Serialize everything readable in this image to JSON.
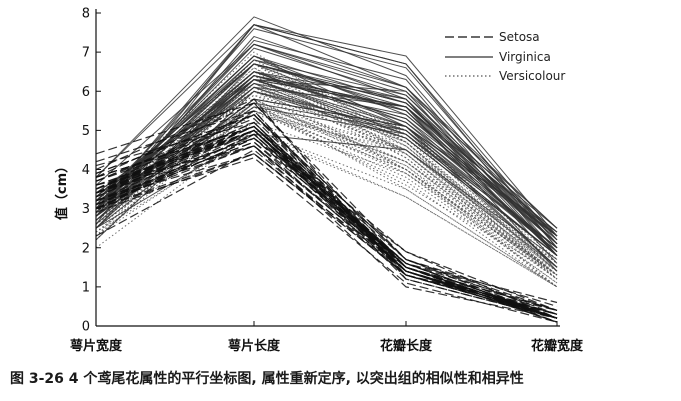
{
  "chart_data": {
    "type": "line",
    "chart_kind": "parallel-coordinates",
    "ylabel": "值（cm）",
    "ylim": [
      0,
      8
    ],
    "yticks": [
      0,
      1,
      2,
      3,
      4,
      5,
      6,
      7,
      8
    ],
    "categories": [
      "萼片宽度",
      "萼片长度",
      "花瓣长度",
      "花瓣宽度"
    ],
    "legend": {
      "placement": "top-right",
      "entries": [
        "Setosa",
        "Virginica",
        "Versicolour"
      ]
    },
    "grid": false,
    "series": [
      {
        "name": "Setosa",
        "style": "dashed",
        "color": "#111111",
        "lines": [
          [
            3.5,
            5.1,
            1.4,
            0.2
          ],
          [
            3.0,
            4.9,
            1.4,
            0.2
          ],
          [
            3.2,
            4.7,
            1.3,
            0.2
          ],
          [
            3.1,
            4.6,
            1.5,
            0.2
          ],
          [
            3.6,
            5.0,
            1.4,
            0.2
          ],
          [
            3.9,
            5.4,
            1.7,
            0.4
          ],
          [
            3.4,
            4.6,
            1.4,
            0.3
          ],
          [
            3.4,
            5.0,
            1.5,
            0.2
          ],
          [
            2.9,
            4.4,
            1.4,
            0.2
          ],
          [
            3.1,
            4.9,
            1.5,
            0.1
          ],
          [
            3.7,
            5.4,
            1.5,
            0.2
          ],
          [
            3.4,
            4.8,
            1.6,
            0.2
          ],
          [
            3.0,
            4.8,
            1.4,
            0.1
          ],
          [
            3.0,
            4.3,
            1.1,
            0.1
          ],
          [
            4.0,
            5.8,
            1.2,
            0.2
          ],
          [
            4.4,
            5.7,
            1.5,
            0.4
          ],
          [
            3.9,
            5.4,
            1.3,
            0.4
          ],
          [
            3.5,
            5.1,
            1.4,
            0.3
          ],
          [
            3.8,
            5.7,
            1.7,
            0.3
          ],
          [
            3.8,
            5.1,
            1.5,
            0.3
          ],
          [
            3.4,
            5.4,
            1.7,
            0.2
          ],
          [
            3.7,
            5.1,
            1.5,
            0.4
          ],
          [
            3.6,
            4.6,
            1.0,
            0.2
          ],
          [
            3.3,
            5.1,
            1.7,
            0.5
          ],
          [
            3.4,
            4.8,
            1.9,
            0.2
          ],
          [
            3.0,
            5.0,
            1.6,
            0.2
          ],
          [
            3.4,
            5.0,
            1.6,
            0.4
          ],
          [
            3.5,
            5.2,
            1.5,
            0.2
          ],
          [
            3.4,
            5.2,
            1.4,
            0.2
          ],
          [
            3.2,
            4.7,
            1.6,
            0.2
          ],
          [
            4.1,
            5.2,
            1.5,
            0.1
          ],
          [
            4.2,
            5.5,
            1.4,
            0.2
          ],
          [
            3.1,
            4.9,
            1.5,
            0.2
          ],
          [
            3.2,
            5.0,
            1.2,
            0.2
          ],
          [
            3.5,
            5.5,
            1.3,
            0.2
          ],
          [
            3.6,
            4.9,
            1.4,
            0.1
          ],
          [
            3.0,
            4.4,
            1.3,
            0.2
          ],
          [
            3.4,
            5.1,
            1.5,
            0.2
          ],
          [
            3.5,
            5.0,
            1.3,
            0.3
          ],
          [
            2.3,
            4.5,
            1.3,
            0.3
          ],
          [
            3.2,
            4.4,
            1.3,
            0.2
          ],
          [
            3.5,
            5.0,
            1.6,
            0.6
          ],
          [
            3.8,
            5.1,
            1.9,
            0.4
          ],
          [
            3.0,
            4.8,
            1.4,
            0.3
          ],
          [
            3.8,
            5.1,
            1.6,
            0.2
          ],
          [
            3.2,
            4.6,
            1.4,
            0.2
          ],
          [
            3.7,
            5.3,
            1.5,
            0.2
          ],
          [
            3.3,
            5.0,
            1.4,
            0.2
          ]
        ]
      },
      {
        "name": "Virginica",
        "style": "solid",
        "color": "#333333",
        "lines": [
          [
            3.3,
            6.3,
            6.0,
            2.5
          ],
          [
            2.7,
            5.8,
            5.1,
            1.9
          ],
          [
            3.0,
            7.1,
            5.9,
            2.1
          ],
          [
            2.9,
            6.3,
            5.6,
            1.8
          ],
          [
            3.0,
            6.5,
            5.8,
            2.2
          ],
          [
            3.0,
            7.6,
            6.6,
            2.1
          ],
          [
            2.5,
            4.9,
            4.5,
            1.7
          ],
          [
            2.9,
            7.3,
            6.3,
            1.8
          ],
          [
            2.5,
            6.7,
            5.8,
            1.8
          ],
          [
            3.6,
            7.2,
            6.1,
            2.5
          ],
          [
            3.2,
            6.5,
            5.1,
            2.0
          ],
          [
            2.7,
            6.4,
            5.3,
            1.9
          ],
          [
            3.0,
            6.8,
            5.5,
            2.1
          ],
          [
            2.5,
            5.7,
            5.0,
            2.0
          ],
          [
            2.8,
            5.8,
            5.1,
            2.4
          ],
          [
            3.2,
            6.4,
            5.3,
            2.3
          ],
          [
            3.0,
            6.5,
            5.5,
            1.8
          ],
          [
            3.8,
            7.7,
            6.7,
            2.2
          ],
          [
            2.6,
            7.7,
            6.9,
            2.3
          ],
          [
            2.2,
            6.0,
            5.0,
            1.5
          ],
          [
            3.2,
            6.9,
            5.7,
            2.3
          ],
          [
            2.8,
            5.6,
            4.9,
            2.0
          ],
          [
            2.8,
            7.7,
            6.7,
            2.0
          ],
          [
            2.7,
            6.3,
            4.9,
            1.8
          ],
          [
            3.3,
            6.7,
            5.7,
            2.1
          ],
          [
            3.2,
            7.2,
            6.0,
            1.8
          ],
          [
            2.8,
            6.2,
            4.8,
            1.8
          ],
          [
            3.0,
            6.1,
            4.9,
            1.8
          ],
          [
            2.8,
            6.4,
            5.6,
            2.1
          ],
          [
            3.0,
            7.2,
            5.8,
            1.6
          ],
          [
            2.8,
            7.4,
            6.1,
            1.9
          ],
          [
            3.8,
            7.9,
            6.4,
            2.0
          ],
          [
            2.8,
            6.4,
            5.6,
            2.2
          ],
          [
            2.8,
            6.3,
            5.1,
            1.5
          ],
          [
            2.6,
            6.1,
            5.6,
            1.4
          ],
          [
            3.0,
            7.7,
            6.1,
            2.3
          ],
          [
            3.4,
            6.3,
            5.6,
            2.4
          ],
          [
            3.1,
            6.4,
            5.5,
            1.8
          ],
          [
            3.0,
            6.0,
            4.8,
            1.8
          ],
          [
            3.1,
            6.9,
            5.4,
            2.1
          ],
          [
            3.1,
            6.7,
            5.6,
            2.4
          ],
          [
            3.1,
            6.9,
            5.1,
            2.3
          ],
          [
            3.2,
            6.8,
            5.9,
            2.3
          ],
          [
            3.3,
            6.7,
            5.7,
            2.5
          ],
          [
            3.0,
            6.7,
            5.2,
            2.3
          ],
          [
            2.5,
            6.3,
            5.0,
            1.9
          ],
          [
            3.0,
            6.5,
            5.2,
            2.0
          ],
          [
            3.4,
            6.2,
            5.4,
            2.3
          ]
        ]
      },
      {
        "name": "Versicolour",
        "style": "dotted",
        "color": "#555555",
        "lines": [
          [
            3.2,
            7.0,
            4.7,
            1.4
          ],
          [
            3.2,
            6.4,
            4.5,
            1.5
          ],
          [
            3.1,
            6.9,
            4.9,
            1.5
          ],
          [
            2.3,
            5.5,
            4.0,
            1.3
          ],
          [
            2.8,
            6.5,
            4.6,
            1.5
          ],
          [
            2.8,
            5.7,
            4.5,
            1.3
          ],
          [
            3.3,
            6.3,
            4.7,
            1.6
          ],
          [
            2.4,
            4.9,
            3.3,
            1.0
          ],
          [
            2.9,
            6.6,
            4.6,
            1.3
          ],
          [
            2.7,
            5.2,
            3.9,
            1.4
          ],
          [
            2.0,
            5.0,
            3.5,
            1.0
          ],
          [
            3.0,
            5.9,
            4.2,
            1.5
          ],
          [
            2.2,
            6.0,
            4.0,
            1.0
          ],
          [
            2.9,
            6.1,
            4.7,
            1.4
          ],
          [
            2.9,
            5.6,
            3.6,
            1.3
          ],
          [
            3.1,
            6.7,
            4.4,
            1.4
          ],
          [
            3.0,
            5.6,
            4.5,
            1.5
          ],
          [
            2.7,
            5.8,
            4.1,
            1.0
          ],
          [
            2.2,
            6.2,
            4.5,
            1.5
          ],
          [
            2.5,
            5.6,
            3.9,
            1.1
          ],
          [
            3.2,
            5.9,
            4.8,
            1.8
          ],
          [
            2.8,
            6.1,
            4.0,
            1.3
          ],
          [
            2.5,
            6.3,
            4.9,
            1.5
          ],
          [
            2.8,
            6.1,
            4.7,
            1.2
          ],
          [
            2.9,
            6.4,
            4.3,
            1.3
          ],
          [
            3.0,
            6.6,
            4.4,
            1.4
          ],
          [
            2.8,
            6.8,
            4.8,
            1.4
          ],
          [
            3.0,
            6.7,
            5.0,
            1.7
          ],
          [
            2.9,
            6.0,
            4.5,
            1.5
          ],
          [
            2.6,
            5.7,
            3.5,
            1.0
          ],
          [
            2.4,
            5.5,
            3.8,
            1.1
          ],
          [
            2.4,
            5.5,
            3.7,
            1.0
          ],
          [
            2.7,
            5.8,
            3.9,
            1.2
          ],
          [
            2.7,
            6.0,
            5.1,
            1.6
          ],
          [
            3.0,
            5.4,
            4.5,
            1.5
          ],
          [
            3.4,
            6.0,
            4.5,
            1.6
          ],
          [
            3.1,
            6.7,
            4.7,
            1.5
          ],
          [
            2.3,
            6.3,
            4.4,
            1.3
          ],
          [
            3.0,
            5.6,
            4.1,
            1.3
          ],
          [
            2.5,
            5.5,
            4.0,
            1.3
          ],
          [
            2.6,
            5.5,
            4.4,
            1.2
          ],
          [
            3.0,
            6.1,
            4.6,
            1.4
          ],
          [
            2.6,
            5.8,
            4.0,
            1.2
          ],
          [
            2.3,
            5.0,
            3.3,
            1.0
          ],
          [
            2.7,
            5.6,
            4.2,
            1.3
          ],
          [
            3.0,
            5.7,
            4.2,
            1.2
          ],
          [
            2.9,
            5.7,
            4.2,
            1.3
          ],
          [
            2.9,
            6.2,
            4.3,
            1.3
          ]
        ]
      }
    ]
  },
  "caption": "图 3-26   4 个鸢尾花属性的平行坐标图, 属性重新定序, 以突出组的相似性和相异性"
}
